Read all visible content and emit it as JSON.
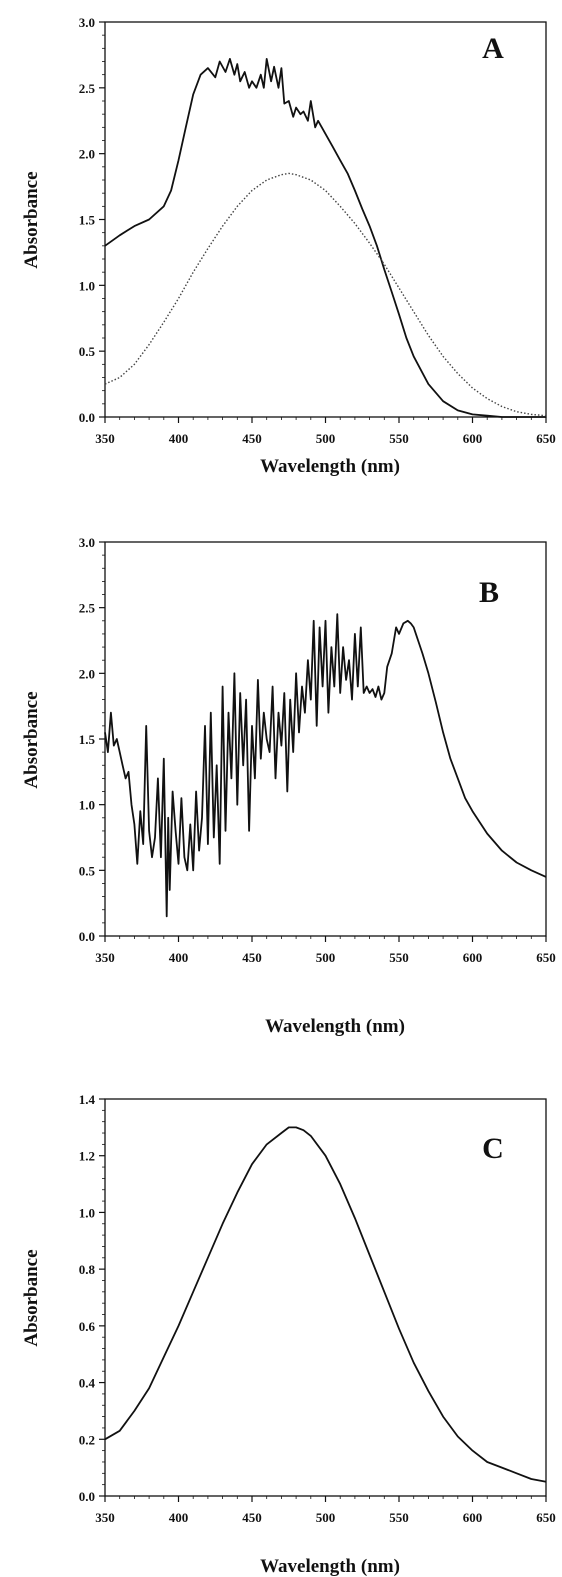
{
  "chart_data": [
    {
      "type": "line",
      "panel_label": "A",
      "xlabel": "Wavelength (nm)",
      "ylabel": "Absorbance",
      "xlim": [
        350,
        650
      ],
      "ylim": [
        0,
        3.0
      ],
      "xticks": [
        "350",
        "400",
        "450",
        "500",
        "550",
        "600",
        "650"
      ],
      "yticks": [
        "0.0",
        "0.5",
        "1.0",
        "1.5",
        "2.0",
        "2.5",
        "3.0"
      ],
      "grid": false,
      "series": [
        {
          "style": "solid",
          "x": [
            350,
            360,
            370,
            380,
            390,
            395,
            400,
            405,
            410,
            415,
            420,
            425,
            428,
            432,
            435,
            438,
            440,
            442,
            445,
            448,
            450,
            453,
            456,
            458,
            460,
            463,
            465,
            468,
            470,
            472,
            475,
            478,
            480,
            483,
            485,
            488,
            490,
            493,
            495,
            500,
            505,
            510,
            515,
            520,
            525,
            530,
            535,
            540,
            545,
            550,
            555,
            560,
            570,
            580,
            590,
            600,
            610,
            620,
            630,
            640,
            650
          ],
          "values": [
            1.3,
            1.38,
            1.45,
            1.5,
            1.6,
            1.72,
            1.95,
            2.2,
            2.45,
            2.6,
            2.65,
            2.58,
            2.7,
            2.62,
            2.72,
            2.6,
            2.68,
            2.55,
            2.62,
            2.5,
            2.55,
            2.5,
            2.6,
            2.5,
            2.72,
            2.55,
            2.66,
            2.5,
            2.65,
            2.38,
            2.4,
            2.28,
            2.35,
            2.3,
            2.32,
            2.25,
            2.4,
            2.2,
            2.25,
            2.15,
            2.05,
            1.95,
            1.85,
            1.72,
            1.58,
            1.45,
            1.3,
            1.12,
            0.95,
            0.78,
            0.6,
            0.46,
            0.25,
            0.12,
            0.05,
            0.02,
            0.01,
            0.0,
            0.0,
            0.0,
            0.0
          ]
        },
        {
          "style": "dotted",
          "x": [
            350,
            360,
            370,
            380,
            390,
            400,
            410,
            420,
            430,
            440,
            450,
            460,
            470,
            475,
            480,
            490,
            500,
            510,
            520,
            530,
            540,
            550,
            560,
            570,
            580,
            590,
            600,
            610,
            620,
            630,
            640,
            650
          ],
          "values": [
            0.25,
            0.3,
            0.4,
            0.55,
            0.72,
            0.9,
            1.1,
            1.28,
            1.45,
            1.6,
            1.72,
            1.8,
            1.84,
            1.85,
            1.84,
            1.8,
            1.72,
            1.6,
            1.47,
            1.32,
            1.16,
            0.98,
            0.8,
            0.62,
            0.46,
            0.33,
            0.22,
            0.14,
            0.08,
            0.04,
            0.02,
            0.01
          ]
        }
      ]
    },
    {
      "type": "line",
      "panel_label": "B",
      "xlabel": "Wavelength (nm)",
      "ylabel": "Absorbance",
      "xlim": [
        350,
        650
      ],
      "ylim": [
        0,
        3.0
      ],
      "xticks": [
        "350",
        "400",
        "450",
        "500",
        "550",
        "600",
        "650"
      ],
      "yticks": [
        "0.0",
        "0.5",
        "1.0",
        "1.5",
        "2.0",
        "2.5",
        "3.0"
      ],
      "grid": false,
      "series": [
        {
          "style": "solid",
          "x": [
            350,
            352,
            354,
            356,
            358,
            360,
            362,
            364,
            366,
            368,
            370,
            372,
            374,
            376,
            378,
            380,
            382,
            384,
            386,
            388,
            390,
            392,
            393,
            394,
            396,
            398,
            400,
            402,
            404,
            406,
            408,
            410,
            412,
            414,
            416,
            418,
            420,
            422,
            424,
            426,
            428,
            430,
            432,
            434,
            436,
            438,
            440,
            442,
            444,
            446,
            448,
            450,
            452,
            454,
            456,
            458,
            460,
            462,
            464,
            466,
            468,
            470,
            472,
            474,
            476,
            478,
            480,
            482,
            484,
            486,
            488,
            490,
            492,
            494,
            496,
            498,
            500,
            502,
            504,
            506,
            508,
            510,
            512,
            514,
            516,
            518,
            520,
            522,
            524,
            526,
            528,
            530,
            532,
            534,
            536,
            538,
            540,
            542,
            545,
            548,
            550,
            553,
            556,
            558,
            560,
            563,
            566,
            570,
            575,
            580,
            585,
            590,
            595,
            600,
            610,
            620,
            630,
            640,
            650
          ],
          "values": [
            1.55,
            1.4,
            1.7,
            1.45,
            1.5,
            1.4,
            1.3,
            1.2,
            1.25,
            1.0,
            0.85,
            0.55,
            0.95,
            0.7,
            1.6,
            0.8,
            0.6,
            0.75,
            1.2,
            0.6,
            1.35,
            0.15,
            0.9,
            0.35,
            1.1,
            0.8,
            0.55,
            1.05,
            0.6,
            0.5,
            0.85,
            0.5,
            1.1,
            0.65,
            0.9,
            1.6,
            0.7,
            1.7,
            0.75,
            1.3,
            0.55,
            1.9,
            0.8,
            1.7,
            1.2,
            2.0,
            1.0,
            1.85,
            1.3,
            1.8,
            0.8,
            1.6,
            1.2,
            1.95,
            1.35,
            1.7,
            1.5,
            1.4,
            1.9,
            1.2,
            1.7,
            1.45,
            1.85,
            1.1,
            1.8,
            1.4,
            2.0,
            1.55,
            1.9,
            1.7,
            2.1,
            1.8,
            2.4,
            1.6,
            2.35,
            1.9,
            2.4,
            1.7,
            2.2,
            1.9,
            2.45,
            1.85,
            2.2,
            1.95,
            2.1,
            1.8,
            2.3,
            1.9,
            2.35,
            1.85,
            1.9,
            1.85,
            1.88,
            1.82,
            1.9,
            1.8,
            1.85,
            2.05,
            2.15,
            2.35,
            2.3,
            2.38,
            2.4,
            2.38,
            2.35,
            2.25,
            2.15,
            2.0,
            1.78,
            1.55,
            1.35,
            1.2,
            1.05,
            0.95,
            0.78,
            0.65,
            0.56,
            0.5,
            0.45
          ]
        }
      ]
    },
    {
      "type": "line",
      "panel_label": "C",
      "xlabel": "Wavelength (nm)",
      "ylabel": "Absorbance",
      "xlim": [
        350,
        650
      ],
      "ylim": [
        0,
        1.4
      ],
      "xticks": [
        "350",
        "400",
        "450",
        "500",
        "550",
        "600",
        "650"
      ],
      "yticks": [
        "0.0",
        "0.2",
        "0.4",
        "0.6",
        "0.8",
        "1.0",
        "1.2",
        "1.4"
      ],
      "grid": false,
      "series": [
        {
          "style": "solid",
          "x": [
            350,
            360,
            370,
            380,
            390,
            400,
            410,
            420,
            430,
            440,
            450,
            460,
            470,
            475,
            480,
            485,
            490,
            500,
            510,
            520,
            530,
            540,
            550,
            560,
            570,
            580,
            590,
            600,
            610,
            620,
            630,
            640,
            650
          ],
          "values": [
            0.2,
            0.23,
            0.3,
            0.38,
            0.49,
            0.6,
            0.72,
            0.84,
            0.96,
            1.07,
            1.17,
            1.24,
            1.28,
            1.3,
            1.3,
            1.29,
            1.27,
            1.2,
            1.1,
            0.98,
            0.85,
            0.72,
            0.59,
            0.47,
            0.37,
            0.28,
            0.21,
            0.16,
            0.12,
            0.1,
            0.08,
            0.06,
            0.05
          ]
        }
      ]
    }
  ]
}
